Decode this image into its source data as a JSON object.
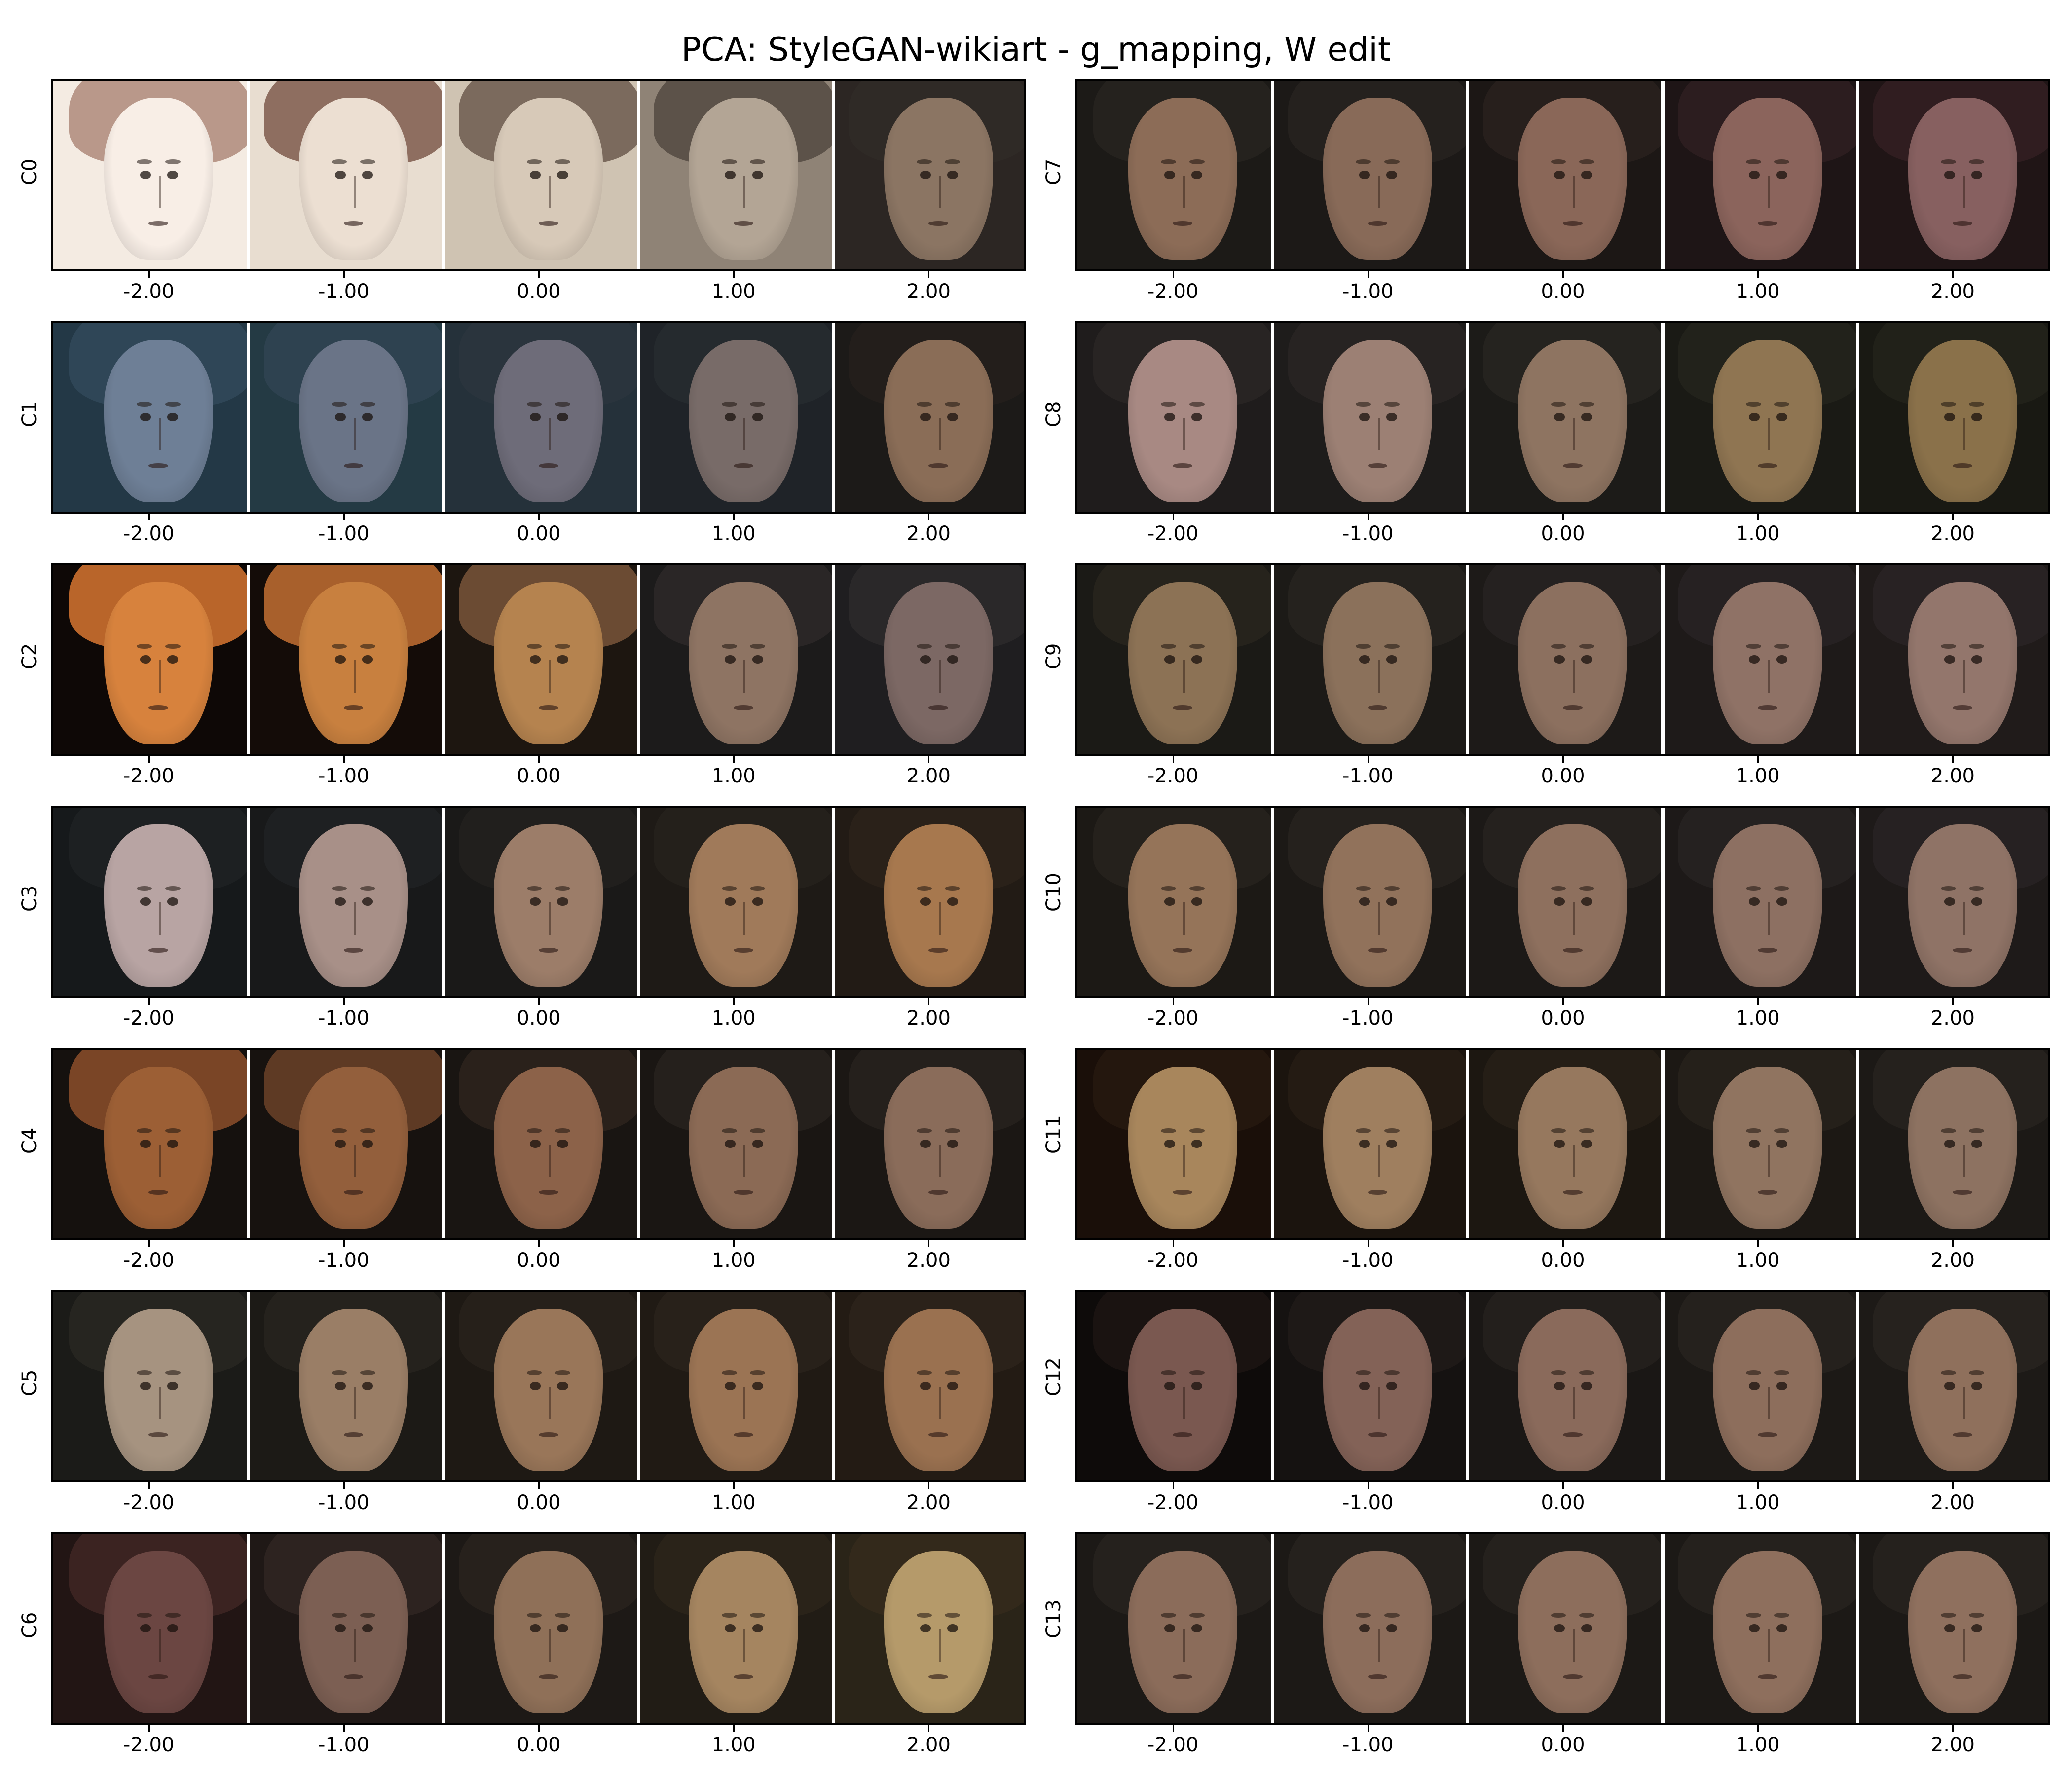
{
  "title": "PCA: StyleGAN-wikiart - g_mapping, W edit",
  "x_ticks": [
    "-2.00",
    "-1.00",
    "0.00",
    "1.00",
    "2.00"
  ],
  "panels": [
    {
      "label": "C0",
      "tiles": [
        {
          "bg": "#f4ebe2",
          "skin": "#f8eee6",
          "hood": "#b9988a"
        },
        {
          "bg": "#e8ddd0",
          "skin": "#ecdfd2",
          "hood": "#8e6e60"
        },
        {
          "bg": "#cfc3b2",
          "skin": "#d7c9b8",
          "hood": "#7b6a5d"
        },
        {
          "bg": "#8f8376",
          "skin": "#b3a595",
          "hood": "#5c5249"
        },
        {
          "bg": "#2c2623",
          "skin": "#8b7563",
          "hood": "#2f2a26"
        }
      ]
    },
    {
      "label": "C1",
      "tiles": [
        {
          "bg": "#233846",
          "skin": "#6e7f96",
          "hood": "#2f4657"
        },
        {
          "bg": "#243a44",
          "skin": "#6a7487",
          "hood": "#2e4250"
        },
        {
          "bg": "#25313a",
          "skin": "#6e6c79",
          "hood": "#2a343d"
        },
        {
          "bg": "#1f2328",
          "skin": "#786b68",
          "hood": "#252a2e"
        },
        {
          "bg": "#1c1a18",
          "skin": "#8a6d57",
          "hood": "#231e1b"
        }
      ]
    },
    {
      "label": "C2",
      "tiles": [
        {
          "bg": "#0e0806",
          "skin": "#d7823d",
          "hood": "#b9652a"
        },
        {
          "bg": "#140c08",
          "skin": "#c8803f",
          "hood": "#a8602c"
        },
        {
          "bg": "#1d1610",
          "skin": "#b5834f",
          "hood": "#6b4b33"
        },
        {
          "bg": "#1c1b1b",
          "skin": "#8e7463",
          "hood": "#2a2626"
        },
        {
          "bg": "#1f1e20",
          "skin": "#7c6864",
          "hood": "#2a2829"
        }
      ]
    },
    {
      "label": "C3",
      "tiles": [
        {
          "bg": "#16191b",
          "skin": "#b8a4a3",
          "hood": "#1d2022"
        },
        {
          "bg": "#18191a",
          "skin": "#a89088",
          "hood": "#1e2022"
        },
        {
          "bg": "#1a1918",
          "skin": "#9c7d69",
          "hood": "#211f1d"
        },
        {
          "bg": "#1e1a16",
          "skin": "#a07a5a",
          "hood": "#24201b"
        },
        {
          "bg": "#221b15",
          "skin": "#a7784e",
          "hood": "#2a2119"
        }
      ]
    },
    {
      "label": "C4",
      "tiles": [
        {
          "bg": "#15110e",
          "skin": "#9c5f35",
          "hood": "#7a4526"
        },
        {
          "bg": "#17120f",
          "skin": "#935f3c",
          "hood": "#5e3a24"
        },
        {
          "bg": "#191512",
          "skin": "#8c6249",
          "hood": "#2a211b"
        },
        {
          "bg": "#1a1613",
          "skin": "#8b6a55",
          "hood": "#25201c"
        },
        {
          "bg": "#1b1714",
          "skin": "#8a6c5a",
          "hood": "#25201c"
        }
      ]
    },
    {
      "label": "C5",
      "tiles": [
        {
          "bg": "#1b1b18",
          "skin": "#a69380",
          "hood": "#262520"
        },
        {
          "bg": "#1c1a16",
          "skin": "#9a7e66",
          "hood": "#25221d"
        },
        {
          "bg": "#1e1914",
          "skin": "#997659",
          "hood": "#26201a"
        },
        {
          "bg": "#201a14",
          "skin": "#9b7454",
          "hood": "#28211a"
        },
        {
          "bg": "#231b14",
          "skin": "#9a7150",
          "hood": "#2b221a"
        }
      ]
    },
    {
      "label": "C6",
      "tiles": [
        {
          "bg": "#221514",
          "skin": "#6b4642",
          "hood": "#3b2321"
        },
        {
          "bg": "#1f1816",
          "skin": "#7c5f53",
          "hood": "#2d2320"
        },
        {
          "bg": "#1d1916",
          "skin": "#8f7058",
          "hood": "#27211c"
        },
        {
          "bg": "#211c15",
          "skin": "#a58560",
          "hood": "#2a2319"
        },
        {
          "bg": "#2a2418",
          "skin": "#b59a6a",
          "hood": "#33291b"
        }
      ]
    },
    {
      "label": "C7",
      "tiles": [
        {
          "bg": "#1c1a17",
          "skin": "#8c6c57",
          "hood": "#25221e"
        },
        {
          "bg": "#1c1917",
          "skin": "#886a58",
          "hood": "#25211e"
        },
        {
          "bg": "#1c1715",
          "skin": "#8a6758",
          "hood": "#271f1c"
        },
        {
          "bg": "#1e1516",
          "skin": "#8b645c",
          "hood": "#2c1d1f"
        },
        {
          "bg": "#201516",
          "skin": "#876060",
          "hood": "#301d20"
        }
      ]
    },
    {
      "label": "C8",
      "tiles": [
        {
          "bg": "#1f1c1c",
          "skin": "#a88983",
          "hood": "#282423"
        },
        {
          "bg": "#1e1c1b",
          "skin": "#9c8074",
          "hood": "#272322"
        },
        {
          "bg": "#1c1b18",
          "skin": "#8e7461",
          "hood": "#25231f"
        },
        {
          "bg": "#1a1a15",
          "skin": "#8f7552",
          "hood": "#22221b"
        },
        {
          "bg": "#191913",
          "skin": "#8a714a",
          "hood": "#212119"
        }
      ]
    },
    {
      "label": "C9",
      "tiles": [
        {
          "bg": "#1b1a16",
          "skin": "#8c7255",
          "hood": "#26231c"
        },
        {
          "bg": "#1c1a17",
          "skin": "#8b715b",
          "hood": "#25221e"
        },
        {
          "bg": "#1d1a18",
          "skin": "#8c705f",
          "hood": "#252120"
        },
        {
          "bg": "#1e1a19",
          "skin": "#8f7266",
          "hood": "#262122"
        },
        {
          "bg": "#201b1a",
          "skin": "#93766c",
          "hood": "#282223"
        }
      ]
    },
    {
      "label": "C10",
      "tiles": [
        {
          "bg": "#1c1915",
          "skin": "#957459",
          "hood": "#25211c"
        },
        {
          "bg": "#1c1916",
          "skin": "#91725b",
          "hood": "#25211d"
        },
        {
          "bg": "#1c1917",
          "skin": "#8e705e",
          "hood": "#25211e"
        },
        {
          "bg": "#1d1918",
          "skin": "#8d7062",
          "hood": "#252120"
        },
        {
          "bg": "#1e1a19",
          "skin": "#8f7366",
          "hood": "#262122"
        }
      ]
    },
    {
      "label": "C11",
      "tiles": [
        {
          "bg": "#1a0f09",
          "skin": "#a8865c",
          "hood": "#24170e"
        },
        {
          "bg": "#1b140e",
          "skin": "#9f7f5f",
          "hood": "#241b13"
        },
        {
          "bg": "#1c1711",
          "skin": "#96785e",
          "hood": "#251e16"
        },
        {
          "bg": "#1c1814",
          "skin": "#907460",
          "hood": "#25201a"
        },
        {
          "bg": "#1c1916",
          "skin": "#8d7261",
          "hood": "#25211d"
        }
      ]
    },
    {
      "label": "C12",
      "tiles": [
        {
          "bg": "#0e0b0a",
          "skin": "#7a5850",
          "hood": "#1a1311"
        },
        {
          "bg": "#151211",
          "skin": "#836257",
          "hood": "#1e1917"
        },
        {
          "bg": "#1a1715",
          "skin": "#8a6a5b",
          "hood": "#231f1c"
        },
        {
          "bg": "#1c1916",
          "skin": "#8d6e5c",
          "hood": "#25211d"
        },
        {
          "bg": "#1d1a17",
          "skin": "#8f705c",
          "hood": "#26221e"
        }
      ]
    },
    {
      "label": "C13",
      "tiles": [
        {
          "bg": "#1c1916",
          "skin": "#8b6c5a",
          "hood": "#25211d"
        },
        {
          "bg": "#1c1916",
          "skin": "#8c6d5b",
          "hood": "#25211d"
        },
        {
          "bg": "#1c1916",
          "skin": "#8d6e5c",
          "hood": "#25211d"
        },
        {
          "bg": "#1c1916",
          "skin": "#8e6f5d",
          "hood": "#25211d"
        },
        {
          "bg": "#1c1916",
          "skin": "#8f705e",
          "hood": "#25211d"
        }
      ]
    }
  ]
}
